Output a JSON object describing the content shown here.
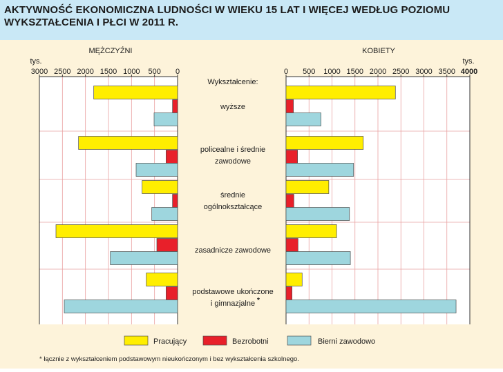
{
  "title": {
    "line1": "AKTYWNOŚĆ EKONOMICZNA LUDNOŚCI W WIEKU 15 LAT I WIĘCEJ WEDŁUG POZIOMU",
    "line2": "WYKSZTAŁCENIA I PŁCI W 2011 R."
  },
  "colors": {
    "panel_background": "#fdf3da",
    "title_background": "#c9e8f6",
    "plot_background": "#ffffff",
    "pracujacy": "#ffee00",
    "bezrobotni": "#e8202a",
    "bierni": "#9ed6de"
  },
  "chart_data": {
    "type": "bar",
    "orientation": "horizontal",
    "layout": "population-pyramid",
    "unit": "tys.",
    "category_header": "Wykształcenie:",
    "categories": [
      [
        "wyższe"
      ],
      [
        "policealne i średnie",
        "zawodowe"
      ],
      [
        "średnie",
        "ogólnokształcące"
      ],
      [
        "zasadnicze zawodowe"
      ],
      [
        "podstawowe ukończone",
        "i gimnazjalne"
      ]
    ],
    "footnote_marker": "*",
    "panels": [
      {
        "name": "MĘŻCZYŹNI",
        "direction": "left",
        "axis_label": "tys.",
        "xlim": [
          0,
          3000
        ],
        "ticks": [
          0,
          500,
          1000,
          1500,
          2000,
          2500,
          3000
        ],
        "tick_labels": [
          "0",
          "500",
          "1000",
          "1500",
          "2000",
          "2500",
          "3000"
        ],
        "series": [
          {
            "name": "Pracujący",
            "values": [
              1820,
              2150,
              770,
              2640,
              680
            ]
          },
          {
            "name": "Bezrobotni",
            "values": [
              110,
              250,
              110,
              450,
              250
            ]
          },
          {
            "name": "Bierni zawodowo",
            "values": [
              510,
              900,
              560,
              1460,
              2460
            ]
          }
        ]
      },
      {
        "name": "KOBIETY",
        "direction": "right",
        "axis_label": "tys.",
        "xlim": [
          0,
          4000
        ],
        "ticks": [
          0,
          500,
          1000,
          1500,
          2000,
          2500,
          3000,
          3500,
          4000
        ],
        "tick_labels": [
          "0",
          "500",
          "1000",
          "1500",
          "2000",
          "2500",
          "3000",
          "3500",
          "4000"
        ],
        "series": [
          {
            "name": "Pracujący",
            "values": [
              2380,
              1680,
              930,
              1100,
              350
            ]
          },
          {
            "name": "Bezrobotni",
            "values": [
              160,
              250,
              170,
              260,
              130
            ]
          },
          {
            "name": "Bierni zawodowo",
            "values": [
              760,
              1470,
              1380,
              1400,
              3700
            ]
          }
        ]
      }
    ],
    "legend": {
      "position": "bottom",
      "items": [
        "Pracujący",
        "Bezrobotni",
        "Bierni zawodowo"
      ]
    },
    "grid": true,
    "footnote": "* łącznie z  wykształceniem podstawowym nieukończonym i bez wykształcenia szkolnego."
  }
}
